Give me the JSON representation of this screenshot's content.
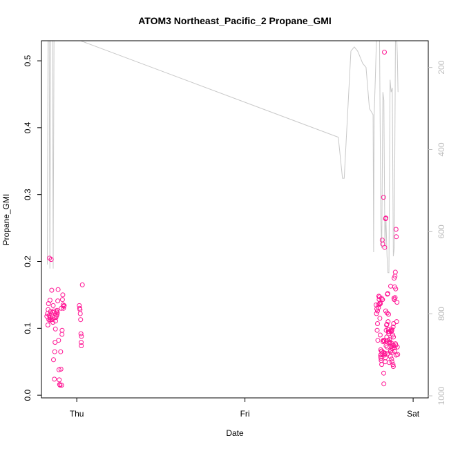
{
  "chart_data": {
    "type": "scatter",
    "title": "ATOM3 Northeast_Pacific_2 Propane_GMI",
    "xlabel": "Date",
    "ylabel": "Propane_GMI",
    "x_tick_labels": [
      "Thu",
      "Fri",
      "Sat"
    ],
    "x_ticks": [
      0,
      1,
      2
    ],
    "xlim": [
      -0.21,
      2.09
    ],
    "ylim": [
      -0.004,
      0.53
    ],
    "y_ticks": [
      0.0,
      0.1,
      0.2,
      0.3,
      0.4,
      0.5
    ],
    "y_tick_labels": [
      "0.0",
      "0.1",
      "0.2",
      "0.3",
      "0.4",
      "0.5"
    ],
    "y2_ticks": [
      200,
      400,
      600,
      800,
      1000
    ],
    "y2_tick_labels": [
      "200",
      "400",
      "600",
      "800",
      "1000"
    ],
    "y2lim": [
      1005,
      135
    ],
    "grid": false,
    "colors": {
      "points": "#ff1493",
      "pressure_line": "#c8c8c8",
      "axis": "#000000",
      "right_axis": "#bdbdbd"
    },
    "series": [
      {
        "marker": "open-circle",
        "axis": "left",
        "points": [
          [
            -0.178,
            0.118
          ],
          [
            -0.174,
            0.122
          ],
          [
            -0.172,
            0.105
          ],
          [
            -0.17,
            0.128
          ],
          [
            -0.168,
            0.137
          ],
          [
            -0.166,
            0.113
          ],
          [
            -0.164,
            0.119
          ],
          [
            -0.162,
            0.205
          ],
          [
            -0.16,
            0.112
          ],
          [
            -0.159,
            0.142
          ],
          [
            -0.157,
            0.116
          ],
          [
            -0.156,
            0.125
          ],
          [
            -0.154,
            0.113
          ],
          [
            -0.152,
            0.203
          ],
          [
            -0.151,
            0.121
          ],
          [
            -0.149,
            0.157
          ],
          [
            -0.147,
            0.113
          ],
          [
            -0.146,
            0.118
          ],
          [
            -0.144,
            0.124
          ],
          [
            -0.142,
            0.109
          ],
          [
            -0.14,
            0.134
          ],
          [
            -0.138,
            0.053
          ],
          [
            -0.137,
            0.126
          ],
          [
            -0.135,
            0.116
          ],
          [
            -0.133,
            0.024
          ],
          [
            -0.131,
            0.065
          ],
          [
            -0.129,
            0.079
          ],
          [
            -0.127,
            0.099
          ],
          [
            -0.126,
            0.111
          ],
          [
            -0.124,
            0.116
          ],
          [
            -0.122,
            0.118
          ],
          [
            -0.12,
            0.125
          ],
          [
            -0.118,
            0.12
          ],
          [
            -0.117,
            0.127
          ],
          [
            -0.115,
            0.123
          ],
          [
            -0.113,
            0.141
          ],
          [
            -0.111,
            0.158
          ],
          [
            -0.108,
            0.082
          ],
          [
            -0.106,
            0.038
          ],
          [
            -0.104,
            0.023
          ],
          [
            -0.102,
            0.016
          ],
          [
            -0.099,
            0.015
          ],
          [
            -0.096,
            0.065
          ],
          [
            -0.094,
            0.039
          ],
          [
            -0.092,
            0.13
          ],
          [
            -0.09,
            0.015
          ],
          [
            -0.088,
            0.091
          ],
          [
            -0.087,
            0.097
          ],
          [
            -0.085,
            0.143
          ],
          [
            -0.083,
            0.15
          ],
          [
            -0.081,
            0.135
          ],
          [
            -0.079,
            0.13
          ],
          [
            -0.077,
            0.133
          ],
          [
            -0.075,
            0.134
          ],
          [
            0.015,
            0.134
          ],
          [
            0.017,
            0.13
          ],
          [
            0.019,
            0.128
          ],
          [
            0.021,
            0.122
          ],
          [
            0.023,
            0.113
          ],
          [
            0.025,
            0.092
          ],
          [
            0.026,
            0.079
          ],
          [
            0.027,
            0.074
          ],
          [
            0.028,
            0.088
          ],
          [
            0.033,
            0.165
          ],
          [
            1.78,
            0.135
          ],
          [
            1.782,
            0.122
          ],
          [
            1.784,
            0.129
          ],
          [
            1.786,
            0.097
          ],
          [
            1.788,
            0.107
          ],
          [
            1.79,
            0.082
          ],
          [
            1.792,
            0.135
          ],
          [
            1.794,
            0.131
          ],
          [
            1.796,
            0.148
          ],
          [
            1.798,
            0.143
          ],
          [
            1.8,
            0.147
          ],
          [
            1.802,
            0.115
          ],
          [
            1.804,
            0.09
          ],
          [
            1.806,
            0.06
          ],
          [
            1.807,
            0.068
          ],
          [
            1.808,
            0.057
          ],
          [
            1.809,
            0.055
          ],
          [
            1.81,
            0.052
          ],
          [
            1.811,
            0.066
          ],
          [
            1.813,
            0.046
          ],
          [
            1.815,
            0.062
          ],
          [
            1.817,
            0.143
          ],
          [
            1.819,
            0.226
          ],
          [
            1.821,
            0.08
          ],
          [
            1.823,
            0.082
          ],
          [
            1.825,
            0.033
          ],
          [
            1.826,
            0.017
          ],
          [
            1.828,
            0.081
          ],
          [
            1.83,
            0.06
          ],
          [
            1.832,
            0.063
          ],
          [
            1.834,
            0.05
          ],
          [
            1.836,
            0.264
          ],
          [
            1.838,
            0.265
          ],
          [
            1.84,
            0.097
          ],
          [
            1.842,
            0.105
          ],
          [
            1.844,
            0.106
          ],
          [
            1.846,
            0.072
          ],
          [
            1.848,
            0.062
          ],
          [
            1.85,
            0.082
          ],
          [
            1.852,
            0.098
          ],
          [
            1.854,
            0.121
          ],
          [
            1.856,
            0.095
          ],
          [
            1.858,
            0.08
          ],
          [
            1.86,
            0.083
          ],
          [
            1.862,
            0.079
          ],
          [
            1.864,
            0.065
          ],
          [
            1.866,
            0.163
          ],
          [
            1.868,
            0.096
          ],
          [
            1.87,
            0.095
          ],
          [
            1.872,
            0.054
          ],
          [
            1.874,
            0.05
          ],
          [
            1.876,
            0.077
          ],
          [
            1.878,
            0.074
          ],
          [
            1.88,
            0.046
          ],
          [
            1.882,
            0.043
          ],
          [
            1.884,
            0.107
          ],
          [
            1.886,
            0.145
          ],
          [
            1.888,
            0.143
          ],
          [
            1.89,
            0.162
          ],
          [
            1.892,
            0.178
          ],
          [
            1.894,
            0.184
          ],
          [
            1.896,
            0.159
          ],
          [
            1.898,
            0.248
          ],
          [
            1.9,
            0.237
          ],
          [
            1.902,
            0.11
          ],
          [
            1.904,
            0.139
          ],
          [
            1.906,
            0.072
          ],
          [
            1.908,
            0.061
          ],
          [
            1.801,
            0.136
          ],
          [
            1.803,
            0.138
          ],
          [
            1.805,
            0.137
          ],
          [
            1.812,
            0.145
          ],
          [
            1.818,
            0.143
          ],
          [
            1.822,
            0.064
          ],
          [
            1.827,
            0.082
          ],
          [
            1.831,
            0.221
          ],
          [
            1.833,
            0.062
          ],
          [
            1.835,
            0.056
          ],
          [
            1.837,
            0.126
          ],
          [
            1.841,
            0.081
          ],
          [
            1.843,
            0.087
          ],
          [
            1.845,
            0.123
          ],
          [
            1.847,
            0.151
          ],
          [
            1.849,
            0.152
          ],
          [
            1.851,
            0.11
          ],
          [
            1.853,
            0.095
          ],
          [
            1.855,
            0.092
          ],
          [
            1.859,
            0.095
          ],
          [
            1.861,
            0.083
          ],
          [
            1.863,
            0.078
          ],
          [
            1.865,
            0.058
          ],
          [
            1.867,
            0.067
          ],
          [
            1.869,
            0.073
          ],
          [
            1.871,
            0.099
          ],
          [
            1.873,
            0.097
          ],
          [
            1.875,
            0.064
          ],
          [
            1.877,
            0.07
          ],
          [
            1.879,
            0.09
          ],
          [
            1.881,
            0.102
          ],
          [
            1.883,
            0.087
          ],
          [
            1.885,
            0.074
          ],
          [
            1.887,
            0.175
          ],
          [
            1.889,
            0.066
          ],
          [
            1.891,
            0.071
          ],
          [
            1.893,
            0.146
          ],
          [
            1.895,
            0.077
          ],
          [
            1.897,
            0.075
          ],
          [
            1.899,
            0.06
          ],
          [
            1.824,
            0.296
          ],
          [
            1.829,
            0.513
          ],
          [
            1.816,
            0.232
          ],
          [
            1.814,
            0.066
          ],
          [
            1.839,
            0.074
          ],
          [
            1.857,
            0.049
          ],
          [
            1.788,
            0.126
          ]
        ]
      },
      {
        "marker": "line",
        "axis": "right",
        "points": [
          [
            -0.175,
            680
          ],
          [
            -0.17,
            40
          ],
          [
            -0.165,
            50
          ],
          [
            -0.16,
            690
          ],
          [
            -0.155,
            60
          ],
          [
            -0.15,
            70
          ],
          [
            -0.145,
            40
          ],
          [
            -0.14,
            690
          ],
          [
            -0.135,
            70
          ],
          [
            -0.13,
            60
          ],
          [
            -0.125,
            50
          ],
          [
            -0.12,
            60
          ],
          [
            -0.115,
            50
          ],
          [
            -0.11,
            60
          ],
          [
            -0.105,
            70
          ],
          [
            -0.1,
            80
          ],
          [
            -0.095,
            70
          ],
          [
            -0.085,
            70
          ],
          [
            -0.08,
            100
          ],
          [
            -0.075,
            120
          ],
          [
            1.555,
            370
          ],
          [
            1.58,
            470
          ],
          [
            1.59,
            470
          ],
          [
            1.63,
            160
          ],
          [
            1.65,
            150
          ],
          [
            1.67,
            160
          ],
          [
            1.68,
            170
          ],
          [
            1.7,
            190
          ],
          [
            1.72,
            200
          ],
          [
            1.74,
            300
          ],
          [
            1.762,
            315
          ],
          [
            1.765,
            650
          ],
          [
            1.768,
            320
          ],
          [
            1.775,
            230
          ],
          [
            1.782,
            130
          ],
          [
            1.788,
            110
          ],
          [
            1.794,
            110
          ],
          [
            1.8,
            120
          ],
          [
            1.808,
            570
          ],
          [
            1.813,
            640
          ],
          [
            1.82,
            260
          ],
          [
            1.826,
            280
          ],
          [
            1.832,
            640
          ],
          [
            1.838,
            560
          ],
          [
            1.845,
            660
          ],
          [
            1.85,
            700
          ],
          [
            1.856,
            700
          ],
          [
            1.863,
            230
          ],
          [
            1.869,
            260
          ],
          [
            1.876,
            250
          ],
          [
            1.882,
            660
          ],
          [
            1.888,
            640
          ],
          [
            1.895,
            120
          ],
          [
            1.902,
            120
          ],
          [
            1.906,
            170
          ],
          [
            1.91,
            260
          ]
        ],
        "segments_note": ""
      }
    ]
  }
}
